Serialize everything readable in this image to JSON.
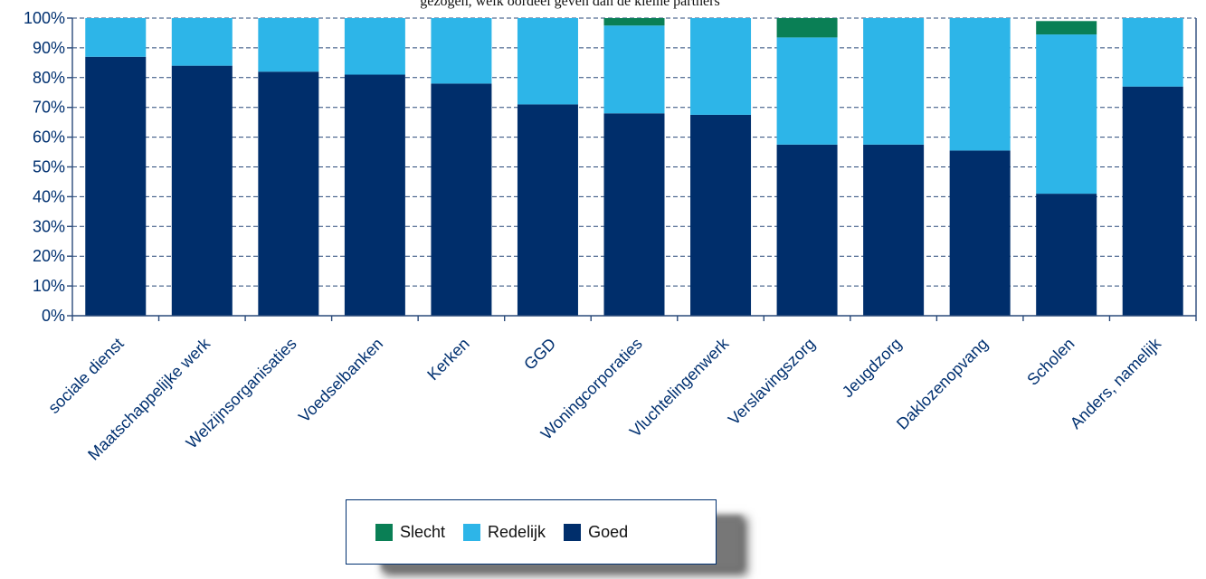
{
  "header_fragment": "gezogen, welk oordeel geven dan de kleine partners",
  "colors": {
    "Slecht": "#0a7f55",
    "Redelijk": "#2db5e8",
    "Goed": "#002e6b"
  },
  "legend": {
    "items": [
      {
        "label": "Slecht",
        "color": "#0a7f55"
      },
      {
        "label": "Redelijk",
        "color": "#2db5e8"
      },
      {
        "label": "Goed",
        "color": "#002e6b"
      }
    ]
  },
  "chart_data": {
    "type": "bar",
    "stacked": true,
    "title": "",
    "xlabel": "",
    "ylabel": "",
    "ylim": [
      0,
      100
    ],
    "yticks": [
      "0%",
      "10%",
      "20%",
      "30%",
      "40%",
      "50%",
      "60%",
      "70%",
      "80%",
      "90%",
      "100%"
    ],
    "grid": true,
    "legend_position": "bottom",
    "categories": [
      "sociale dienst",
      "Maatschappelijke werk",
      "Welzijnsorganisaties",
      "Voedselbanken",
      "Kerken",
      "GGD",
      "Woningcorporaties",
      "Vluchtelingenwerk",
      "Verslavingszorg",
      "Jeugdzorg",
      "Daklozenopvang",
      "Scholen",
      "Anders, namelijk"
    ],
    "series": [
      {
        "name": "Goed",
        "values": [
          87,
          84,
          82,
          81,
          78,
          71,
          68,
          67.5,
          57.5,
          57.5,
          55.5,
          41,
          77
        ]
      },
      {
        "name": "Redelijk",
        "values": [
          13,
          16,
          18,
          19,
          22,
          29,
          29.5,
          32.5,
          36,
          42.5,
          44.5,
          53.5,
          23
        ]
      },
      {
        "name": "Slecht",
        "values": [
          0,
          0,
          0,
          0,
          0,
          0,
          2.5,
          0,
          6.5,
          0,
          0,
          4.5,
          0
        ]
      }
    ]
  }
}
